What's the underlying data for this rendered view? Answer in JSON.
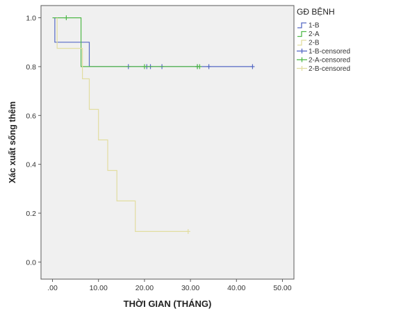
{
  "chart_data": {
    "type": "line",
    "subtype": "kaplan-meier-survival",
    "xlabel": "THỜI GIAN (THÁNG)",
    "ylabel": "Xác xuất sống thêm",
    "xlim": [
      -2.5,
      52.5
    ],
    "ylim": [
      -0.07,
      1.05
    ],
    "x_ticks": [
      0,
      10,
      20,
      30,
      40,
      50
    ],
    "x_tick_labels": [
      ".00",
      "10.00",
      "20.00",
      "30.00",
      "40.00",
      "50.00"
    ],
    "y_ticks": [
      0,
      0.2,
      0.4,
      0.6,
      0.8,
      1.0
    ],
    "y_tick_labels": [
      "0.0",
      "0.2",
      "0.4",
      "0.6",
      "0.8",
      "1.0"
    ],
    "grid": false,
    "plot_background": "#f0f0f0",
    "legend": {
      "title": "GĐ BỆNH",
      "placement": "right",
      "entries": [
        {
          "label": "1-B",
          "kind": "line",
          "color": "#5468c4"
        },
        {
          "label": "2-A",
          "kind": "line",
          "color": "#4fb848"
        },
        {
          "label": "2-B",
          "kind": "line",
          "color": "#e2dda0"
        },
        {
          "label": "1-B-censored",
          "kind": "censor",
          "color": "#5468c4"
        },
        {
          "label": "2-A-censored",
          "kind": "censor",
          "color": "#4fb848"
        },
        {
          "label": "2-B-censored",
          "kind": "censor",
          "color": "#e2dda0"
        }
      ]
    },
    "series": [
      {
        "name": "1-B",
        "color": "#5468c4",
        "steps": [
          [
            0.5,
            1.0
          ],
          [
            0.5,
            0.9
          ],
          [
            8.0,
            0.9
          ],
          [
            8.0,
            0.8
          ],
          [
            43.5,
            0.8
          ]
        ],
        "censored": [
          [
            16.5,
            0.8
          ],
          [
            20.5,
            0.8
          ],
          [
            21.3,
            0.8
          ],
          [
            23.8,
            0.8
          ],
          [
            31.5,
            0.8
          ],
          [
            34.0,
            0.8
          ],
          [
            43.5,
            0.8
          ]
        ]
      },
      {
        "name": "2-A",
        "color": "#4fb848",
        "steps": [
          [
            0.0,
            1.0
          ],
          [
            6.2,
            1.0
          ],
          [
            6.2,
            0.8
          ],
          [
            32.0,
            0.8
          ]
        ],
        "censored": [
          [
            3.0,
            1.0
          ],
          [
            20.0,
            0.8
          ],
          [
            31.5,
            0.8
          ],
          [
            32.0,
            0.8
          ]
        ]
      },
      {
        "name": "2-B",
        "color": "#e2dda0",
        "steps": [
          [
            1.0,
            1.0
          ],
          [
            1.0,
            0.875
          ],
          [
            6.5,
            0.875
          ],
          [
            6.5,
            0.75
          ],
          [
            8.0,
            0.75
          ],
          [
            8.0,
            0.625
          ],
          [
            10.0,
            0.625
          ],
          [
            10.0,
            0.5
          ],
          [
            12.0,
            0.5
          ],
          [
            12.0,
            0.375
          ],
          [
            14.0,
            0.375
          ],
          [
            14.0,
            0.25
          ],
          [
            18.0,
            0.25
          ],
          [
            18.0,
            0.125
          ],
          [
            29.5,
            0.125
          ]
        ],
        "censored": [
          [
            29.5,
            0.125
          ]
        ]
      }
    ]
  }
}
